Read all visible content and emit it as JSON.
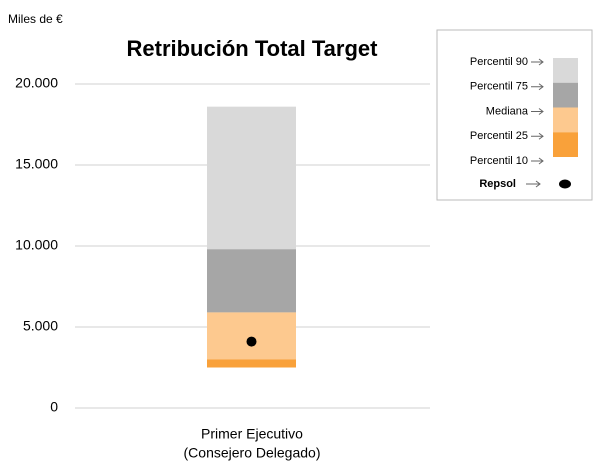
{
  "chart_data": {
    "type": "floating-bar",
    "unit_label": "Miles de €",
    "title": "Retribución Total Target",
    "category_lines": [
      "Primer Ejecutivo",
      "(Consejero Delegado)"
    ],
    "percentiles": [
      {
        "name": "Percentil 90",
        "value": 18600
      },
      {
        "name": "Percentil 75",
        "value": 9800
      },
      {
        "name": "Mediana",
        "value": 5900
      },
      {
        "name": "Percentil 25",
        "value": 3000
      },
      {
        "name": "Percentil 10",
        "value": 2500
      }
    ],
    "segment_colors": [
      "#d9d9d9",
      "#a6a6a6",
      "#fdc98f",
      "#f9a13a"
    ],
    "marker": {
      "name": "Repsol",
      "value": 4100,
      "color": "#000000"
    },
    "ylim": [
      0,
      20000
    ],
    "yticks": [
      0,
      {
        "value": 5000,
        "label": "5.000"
      },
      {
        "value": 10000,
        "label": "10.000"
      },
      {
        "value": 15000,
        "label": "15.000"
      },
      {
        "value": 20000,
        "label": "20.000"
      }
    ],
    "grid": true
  }
}
